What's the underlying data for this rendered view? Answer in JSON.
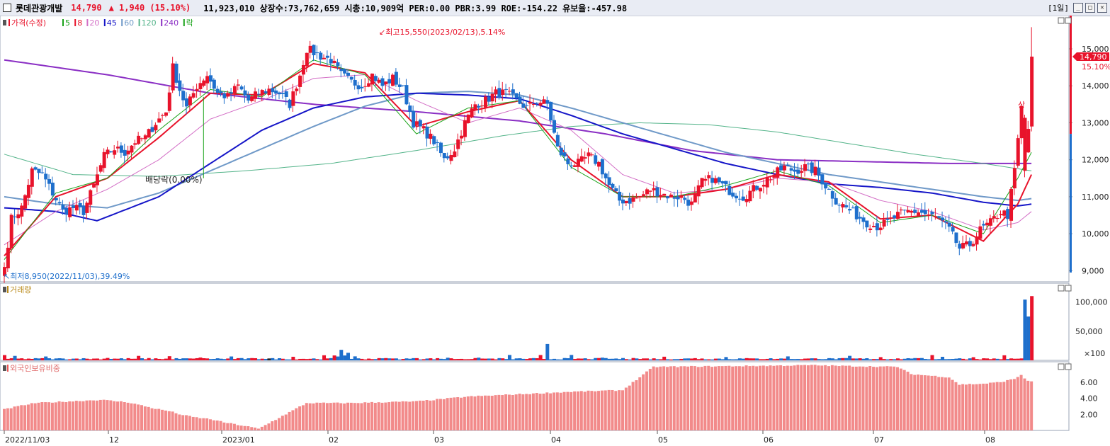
{
  "header": {
    "stock_name": "롯데관광개발",
    "price": "14,790",
    "change": "▲ 1,940 (15.10%)",
    "stats": "11,923,010  상장수:73,762,659 시총:10,909억 PER:0.00 PBR:3.99 ROE:-154.22 유보율:-457.98",
    "period_label": "[1일]",
    "min_btn": "_",
    "max_btn": "□",
    "close_btn": "✕"
  },
  "price_panel": {
    "legend": [
      {
        "label": "가격(수정)",
        "color": "#e8132b"
      },
      {
        "label": "5",
        "color": "#1aa31a"
      },
      {
        "label": "8",
        "color": "#e8132b"
      },
      {
        "label": "20",
        "color": "#d36fc6"
      },
      {
        "label": "45",
        "color": "#1616c8"
      },
      {
        "label": "60",
        "color": "#6f99c8"
      },
      {
        "label": "120",
        "color": "#54b48a"
      },
      {
        "label": "240",
        "color": "#8a2ec4"
      },
      {
        "label": "락",
        "color": "#1aa31a"
      }
    ],
    "high_annotation": "최고15,550(2023/02/13),5.14%",
    "low_annotation": "최저8,950(2022/11/03),39.49%",
    "dividend_annotation": "배당락(0.00%)",
    "updown_mark": "상",
    "current_price_tag": "14,790",
    "current_pct_tag": "15.10%",
    "y_ticks": [
      "15,000",
      "14,000",
      "13,000",
      "12,000",
      "11,000",
      "10,000",
      "9,000"
    ]
  },
  "volume_panel": {
    "title": "거래량",
    "y_ticks": [
      "100,000",
      "50,000",
      "×100"
    ]
  },
  "foreign_panel": {
    "title": "외국인보유비중",
    "y_ticks": [
      "6.00",
      "4.00",
      "2.00"
    ]
  },
  "x_labels": [
    "2022/11/03",
    "12",
    "2023/01",
    "02",
    "03",
    "04",
    "05",
    "06",
    "07",
    "08"
  ],
  "colors": {
    "up": "#e8132b",
    "down": "#1e6fcc",
    "foreign_bar": "#f28a8a",
    "panel_border": "#9aa3b5"
  },
  "chart_data": {
    "type": "candlestick",
    "start_date": "2022-11-03",
    "end_date": "2023-08-14",
    "price_range": [
      8950,
      15550
    ],
    "high": {
      "value": 15550,
      "date": "2023-02-13",
      "pct": "5.14%"
    },
    "low": {
      "value": 8950,
      "date": "2022-11-03",
      "pct": "39.49%"
    },
    "last_close": 14790,
    "close_anchors": [
      [
        0,
        9100
      ],
      [
        2,
        10400
      ],
      [
        5,
        10700
      ],
      [
        8,
        11700
      ],
      [
        11,
        11600
      ],
      [
        14,
        11100
      ],
      [
        17,
        10600
      ],
      [
        20,
        10700
      ],
      [
        23,
        10600
      ],
      [
        26,
        11300
      ],
      [
        29,
        12100
      ],
      [
        32,
        12300
      ],
      [
        35,
        12200
      ],
      [
        38,
        12500
      ],
      [
        41,
        12600
      ],
      [
        44,
        13000
      ],
      [
        47,
        13300
      ],
      [
        49,
        14500
      ],
      [
        51,
        13900
      ],
      [
        53,
        13400
      ],
      [
        56,
        14000
      ],
      [
        59,
        14300
      ],
      [
        62,
        13800
      ],
      [
        65,
        13700
      ],
      [
        68,
        14000
      ],
      [
        71,
        13600
      ],
      [
        74,
        13800
      ],
      [
        77,
        13900
      ],
      [
        80,
        13800
      ],
      [
        83,
        13500
      ],
      [
        86,
        14300
      ],
      [
        88,
        15000
      ],
      [
        90,
        14900
      ],
      [
        92,
        14800
      ],
      [
        95,
        14700
      ],
      [
        98,
        14300
      ],
      [
        101,
        14100
      ],
      [
        104,
        14000
      ],
      [
        107,
        14300
      ],
      [
        110,
        14000
      ],
      [
        113,
        14200
      ],
      [
        116,
        13900
      ],
      [
        119,
        13000
      ],
      [
        122,
        12800
      ],
      [
        125,
        12500
      ],
      [
        128,
        12000
      ],
      [
        131,
        12300
      ],
      [
        134,
        13000
      ],
      [
        137,
        13500
      ],
      [
        140,
        13600
      ],
      [
        143,
        13800
      ],
      [
        146,
        13800
      ],
      [
        149,
        13600
      ],
      [
        152,
        13400
      ],
      [
        155,
        13600
      ],
      [
        158,
        13500
      ],
      [
        161,
        12300
      ],
      [
        164,
        11900
      ],
      [
        167,
        11900
      ],
      [
        170,
        12100
      ],
      [
        173,
        11900
      ],
      [
        176,
        11300
      ],
      [
        179,
        10900
      ],
      [
        182,
        10900
      ],
      [
        185,
        11000
      ],
      [
        188,
        11200
      ],
      [
        191,
        11100
      ],
      [
        194,
        11000
      ],
      [
        197,
        11000
      ],
      [
        200,
        10800
      ],
      [
        203,
        11400
      ],
      [
        206,
        11500
      ],
      [
        209,
        11300
      ],
      [
        212,
        11100
      ],
      [
        215,
        11000
      ],
      [
        218,
        11200
      ],
      [
        221,
        11400
      ],
      [
        224,
        11600
      ],
      [
        227,
        11800
      ],
      [
        230,
        11700
      ],
      [
        233,
        11800
      ],
      [
        236,
        11700
      ],
      [
        239,
        11300
      ],
      [
        242,
        10900
      ],
      [
        245,
        10700
      ],
      [
        248,
        10500
      ],
      [
        251,
        10300
      ],
      [
        254,
        10200
      ],
      [
        257,
        10300
      ],
      [
        260,
        10500
      ],
      [
        263,
        10600
      ],
      [
        266,
        10600
      ],
      [
        269,
        10500
      ],
      [
        272,
        10400
      ],
      [
        275,
        10100
      ],
      [
        278,
        9600
      ],
      [
        281,
        9700
      ],
      [
        284,
        10100
      ],
      [
        287,
        10300
      ],
      [
        290,
        10600
      ],
      [
        292,
        10500
      ],
      [
        294,
        11700
      ],
      [
        296,
        13400
      ],
      [
        298,
        12850
      ],
      [
        299,
        14790
      ]
    ],
    "ma_anchors": {
      "ma5": [
        [
          0,
          9300
        ],
        [
          15,
          11100
        ],
        [
          30,
          11500
        ],
        [
          45,
          12800
        ],
        [
          60,
          13900
        ],
        [
          75,
          13700
        ],
        [
          90,
          14700
        ],
        [
          105,
          14300
        ],
        [
          120,
          12700
        ],
        [
          135,
          13400
        ],
        [
          150,
          13600
        ],
        [
          165,
          11800
        ],
        [
          180,
          11000
        ],
        [
          195,
          11000
        ],
        [
          210,
          11300
        ],
        [
          225,
          11700
        ],
        [
          240,
          11300
        ],
        [
          255,
          10300
        ],
        [
          270,
          10500
        ],
        [
          285,
          10000
        ],
        [
          295,
          11500
        ],
        [
          299,
          12200
        ]
      ],
      "ma8": [
        [
          0,
          9400
        ],
        [
          15,
          11000
        ],
        [
          30,
          11500
        ],
        [
          45,
          12600
        ],
        [
          60,
          13800
        ],
        [
          75,
          13750
        ],
        [
          90,
          14600
        ],
        [
          105,
          14350
        ],
        [
          120,
          12900
        ],
        [
          135,
          13300
        ],
        [
          150,
          13600
        ],
        [
          165,
          12000
        ],
        [
          180,
          11000
        ],
        [
          195,
          11000
        ],
        [
          210,
          11200
        ],
        [
          225,
          11600
        ],
        [
          240,
          11400
        ],
        [
          255,
          10400
        ],
        [
          270,
          10500
        ],
        [
          285,
          9800
        ],
        [
          295,
          10800
        ],
        [
          299,
          11600
        ]
      ],
      "ma20": [
        [
          0,
          9700
        ],
        [
          15,
          10600
        ],
        [
          30,
          11200
        ],
        [
          45,
          12000
        ],
        [
          60,
          13100
        ],
        [
          75,
          13600
        ],
        [
          90,
          14200
        ],
        [
          105,
          14300
        ],
        [
          120,
          13600
        ],
        [
          135,
          13000
        ],
        [
          150,
          13400
        ],
        [
          165,
          12800
        ],
        [
          180,
          11600
        ],
        [
          195,
          11100
        ],
        [
          210,
          11200
        ],
        [
          225,
          11500
        ],
        [
          240,
          11400
        ],
        [
          255,
          10900
        ],
        [
          270,
          10600
        ],
        [
          285,
          10100
        ],
        [
          295,
          10300
        ],
        [
          299,
          10600
        ]
      ],
      "ma45": [
        [
          0,
          10700
        ],
        [
          15,
          10600
        ],
        [
          27,
          10350
        ],
        [
          45,
          11000
        ],
        [
          60,
          11900
        ],
        [
          75,
          12800
        ],
        [
          90,
          13400
        ],
        [
          105,
          13700
        ],
        [
          120,
          13800
        ],
        [
          135,
          13750
        ],
        [
          150,
          13650
        ],
        [
          165,
          13200
        ],
        [
          180,
          12700
        ],
        [
          195,
          12300
        ],
        [
          210,
          11900
        ],
        [
          225,
          11600
        ],
        [
          240,
          11350
        ],
        [
          255,
          11250
        ],
        [
          270,
          11100
        ],
        [
          285,
          10850
        ],
        [
          295,
          10750
        ],
        [
          299,
          10800
        ]
      ],
      "ma60": [
        [
          0,
          11000
        ],
        [
          15,
          10800
        ],
        [
          30,
          10700
        ],
        [
          45,
          11100
        ],
        [
          60,
          11700
        ],
        [
          75,
          12300
        ],
        [
          90,
          12900
        ],
        [
          105,
          13450
        ],
        [
          120,
          13800
        ],
        [
          135,
          13850
        ],
        [
          150,
          13750
        ],
        [
          165,
          13400
        ],
        [
          180,
          13000
        ],
        [
          195,
          12600
        ],
        [
          210,
          12200
        ],
        [
          225,
          11900
        ],
        [
          240,
          11600
        ],
        [
          255,
          11400
        ],
        [
          270,
          11200
        ],
        [
          285,
          11000
        ],
        [
          295,
          10900
        ],
        [
          299,
          10950
        ]
      ],
      "ma120": [
        [
          0,
          12150
        ],
        [
          20,
          11600
        ],
        [
          45,
          11550
        ],
        [
          70,
          11700
        ],
        [
          95,
          11900
        ],
        [
          120,
          12250
        ],
        [
          145,
          12650
        ],
        [
          165,
          12900
        ],
        [
          185,
          13000
        ],
        [
          205,
          12950
        ],
        [
          225,
          12750
        ],
        [
          245,
          12450
        ],
        [
          265,
          12150
        ],
        [
          285,
          11900
        ],
        [
          299,
          11700
        ]
      ],
      "ma240": [
        [
          0,
          14700
        ],
        [
          30,
          14300
        ],
        [
          60,
          13800
        ],
        [
          90,
          13500
        ],
        [
          120,
          13300
        ],
        [
          150,
          13050
        ],
        [
          175,
          12700
        ],
        [
          200,
          12250
        ],
        [
          225,
          12000
        ],
        [
          250,
          11950
        ],
        [
          275,
          11900
        ],
        [
          299,
          11900
        ]
      ]
    },
    "volume_scale": [
      0,
      120000
    ],
    "foreign_holding_scale": [
      0,
      8
    ],
    "foreign_holding_segments": [
      [
        0,
        2.6
      ],
      [
        4,
        3.0
      ],
      [
        9,
        3.4
      ],
      [
        28,
        3.8
      ],
      [
        36,
        3.5
      ],
      [
        40,
        3.1
      ],
      [
        44,
        2.7
      ],
      [
        48,
        2.4
      ],
      [
        52,
        1.9
      ],
      [
        56,
        1.6
      ],
      [
        60,
        1.4
      ],
      [
        64,
        1.0
      ],
      [
        68,
        0.7
      ],
      [
        72,
        0.4
      ],
      [
        74,
        0.2
      ],
      [
        88,
        3.4
      ],
      [
        100,
        3.4
      ],
      [
        120,
        3.6
      ],
      [
        135,
        4.2
      ],
      [
        150,
        4.5
      ],
      [
        165,
        4.8
      ],
      [
        180,
        5.0
      ],
      [
        189,
        7.9
      ],
      [
        215,
        8.0
      ],
      [
        235,
        8.1
      ],
      [
        245,
        8.0
      ],
      [
        260,
        7.9
      ],
      [
        264,
        7.0
      ],
      [
        275,
        6.6
      ],
      [
        278,
        5.7
      ],
      [
        285,
        5.8
      ],
      [
        290,
        6.0
      ],
      [
        294,
        6.4
      ],
      [
        296,
        6.9
      ],
      [
        298,
        6.1
      ],
      [
        299,
        6.1
      ]
    ]
  }
}
